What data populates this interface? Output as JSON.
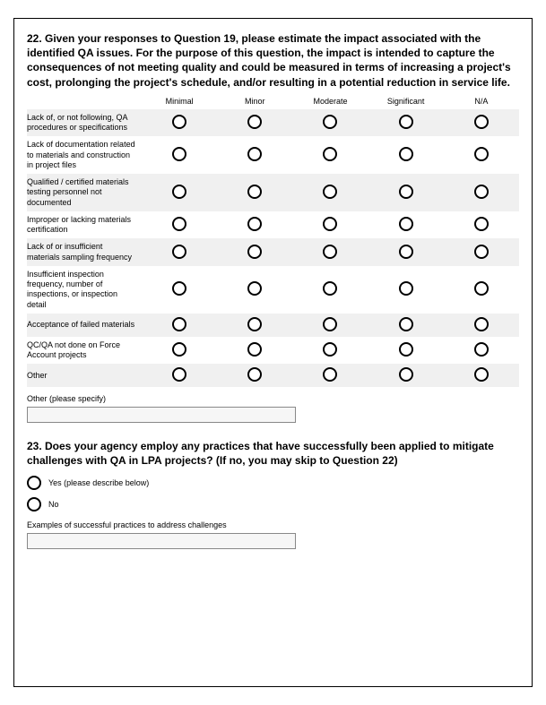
{
  "q22": {
    "title": "22. Given your responses to Question 19, please estimate the impact associated with the identified QA issues. For the purpose of this question, the impact is intended to capture the consequences of not meeting quality and could be measured in terms of increasing a project's cost, prolonging the project's schedule, and/or resulting in a potential reduction in service life.",
    "columns": [
      "Minimal",
      "Minor",
      "Moderate",
      "Significant",
      "N/A"
    ],
    "rows": [
      "Lack of, or not following, QA procedures or specifications",
      "Lack of documentation related to materials and construction in project files",
      "Qualified / certified materials testing personnel not documented",
      "Improper or lacking materials certification",
      "Lack of or insufficient materials sampling frequency",
      "Insufficient inspection frequency, number of inspections, or inspection detail",
      "Acceptance of failed materials",
      "QC/QA not done on Force Account projects",
      "Other"
    ],
    "other_label": "Other (please specify)",
    "other_value": ""
  },
  "q23": {
    "title": "23. Does your agency employ any practices that have successfully been applied to mitigate challenges with QA in LPA projects? (If no, you may skip to Question 22)",
    "option_yes": "Yes (please describe below)",
    "option_no": "No",
    "examples_label": "Examples of successful practices to address challenges",
    "examples_value": ""
  },
  "style": {
    "shaded_bg": "#f0f0f0",
    "border_color": "#000000",
    "input_bg": "#f6f6f6",
    "input_border": "#888888"
  }
}
